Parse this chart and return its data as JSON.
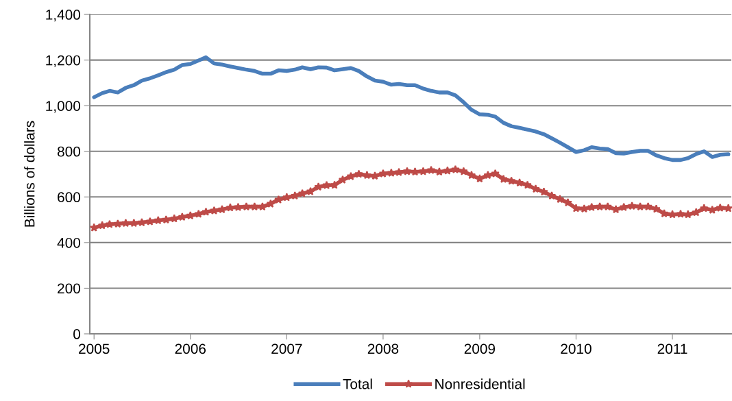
{
  "chart_data": {
    "type": "line",
    "ylabel": "Billions of dollars",
    "x": [
      "2005-01-01",
      "2005-02-01",
      "2005-03-01",
      "2005-04-01",
      "2005-05-01",
      "2005-06-01",
      "2005-07-01",
      "2005-08-01",
      "2005-09-01",
      "2005-10-01",
      "2005-11-01",
      "2005-12-01",
      "2006-01-01",
      "2006-02-01",
      "2006-03-01",
      "2006-04-01",
      "2006-05-01",
      "2006-06-01",
      "2006-07-01",
      "2006-08-01",
      "2006-09-01",
      "2006-10-01",
      "2006-11-01",
      "2006-12-01",
      "2007-01-01",
      "2007-02-01",
      "2007-03-01",
      "2007-04-01",
      "2007-05-01",
      "2007-06-01",
      "2007-07-01",
      "2007-08-01",
      "2007-09-01",
      "2007-10-01",
      "2007-11-01",
      "2007-12-01",
      "2008-01-01",
      "2008-02-01",
      "2008-03-01",
      "2008-04-01",
      "2008-05-01",
      "2008-06-01",
      "2008-07-01",
      "2008-08-01",
      "2008-09-01",
      "2008-10-01",
      "2008-11-01",
      "2008-12-01",
      "2009-01-01",
      "2009-02-01",
      "2009-03-01",
      "2009-04-01",
      "2009-05-01",
      "2009-06-01",
      "2009-07-01",
      "2009-08-01",
      "2009-09-01",
      "2009-10-01",
      "2009-11-01",
      "2009-12-01",
      "2010-01-01",
      "2010-02-01",
      "2010-03-01",
      "2010-04-01",
      "2010-05-01",
      "2010-06-01",
      "2010-07-01",
      "2010-08-01",
      "2010-09-01",
      "2010-10-01",
      "2010-11-01",
      "2010-12-01",
      "2011-01-01",
      "2011-02-01",
      "2011-03-01",
      "2011-04-01",
      "2011-05-01",
      "2011-06-01",
      "2011-07-01",
      "2011-08-01"
    ],
    "series": [
      {
        "name": "Total",
        "color": "#4a7ebb",
        "marker": "none",
        "values": [
          1037,
          1055,
          1065,
          1058,
          1078,
          1090,
          1110,
          1120,
          1133,
          1147,
          1158,
          1178,
          1183,
          1198,
          1212,
          1185,
          1180,
          1172,
          1165,
          1158,
          1152,
          1140,
          1140,
          1155,
          1152,
          1158,
          1168,
          1160,
          1168,
          1167,
          1155,
          1160,
          1165,
          1152,
          1128,
          1110,
          1105,
          1092,
          1095,
          1090,
          1090,
          1075,
          1065,
          1058,
          1058,
          1045,
          1015,
          982,
          962,
          960,
          952,
          925,
          910,
          903,
          895,
          887,
          875,
          857,
          838,
          818,
          797,
          805,
          818,
          812,
          810,
          792,
          790,
          797,
          802,
          802,
          782,
          770,
          762,
          762,
          770,
          788,
          800,
          775,
          785,
          787
        ]
      },
      {
        "name": "Nonresidential",
        "color": "#be4b48",
        "marker": "star",
        "values": [
          465,
          475,
          480,
          482,
          485,
          485,
          488,
          492,
          497,
          500,
          505,
          512,
          518,
          525,
          534,
          540,
          545,
          553,
          555,
          557,
          557,
          557,
          570,
          588,
          598,
          605,
          615,
          624,
          644,
          651,
          652,
          675,
          690,
          700,
          695,
          692,
          702,
          705,
          708,
          712,
          710,
          712,
          717,
          710,
          715,
          720,
          712,
          695,
          680,
          695,
          702,
          678,
          670,
          662,
          652,
          635,
          622,
          605,
          590,
          575,
          550,
          548,
          555,
          557,
          557,
          545,
          555,
          560,
          557,
          557,
          547,
          527,
          523,
          525,
          523,
          532,
          550,
          543,
          552,
          550
        ]
      }
    ],
    "xlim": [
      "2004-12-16",
      "2011-08-12"
    ],
    "xticks": [
      {
        "value": "2005-01-01",
        "label": "2005"
      },
      {
        "value": "2006-01-01",
        "label": "2006"
      },
      {
        "value": "2007-01-01",
        "label": "2007"
      },
      {
        "value": "2008-01-01",
        "label": "2008"
      },
      {
        "value": "2009-01-01",
        "label": "2009"
      },
      {
        "value": "2010-01-01",
        "label": "2010"
      },
      {
        "value": "2011-01-01",
        "label": "2011"
      }
    ],
    "ylim": [
      0,
      1400
    ],
    "yticks": [
      0,
      200,
      400,
      600,
      800,
      {
        "value": 1000,
        "label": "1,000"
      },
      {
        "value": 1200,
        "label": "1,200"
      },
      {
        "value": 1400,
        "label": "1,400"
      }
    ],
    "grid": "y",
    "legend": "bottom",
    "line_style": "solid"
  }
}
